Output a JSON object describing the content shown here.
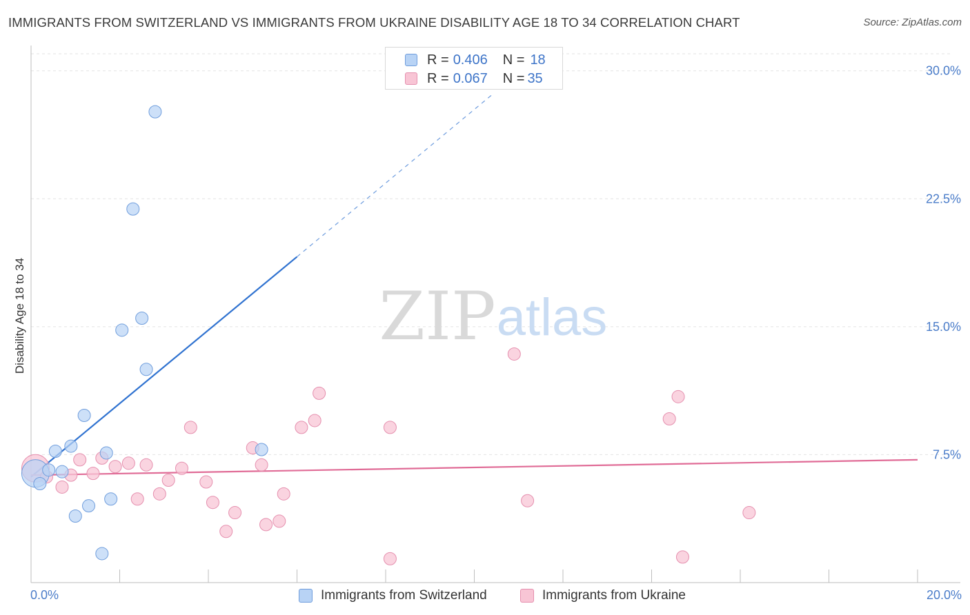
{
  "title": "IMMIGRANTS FROM SWITZERLAND VS IMMIGRANTS FROM UKRAINE DISABILITY AGE 18 TO 34 CORRELATION CHART",
  "source": "Source: ZipAtlas.com",
  "watermark": {
    "zip": "ZIP",
    "atlas": "atlas"
  },
  "colors": {
    "switzerland_fill": "#b8d3f5",
    "switzerland_stroke": "#6f9ddc",
    "switzerland_line": "#2f72d0",
    "ukraine_fill": "#f8c5d5",
    "ukraine_stroke": "#e58fae",
    "ukraine_line": "#e06b96",
    "grid": "#e3e3e3",
    "tick_text": "#4a7cc9"
  },
  "legend": {
    "rows": [
      {
        "r_label": "R = ",
        "r_value": "0.406",
        "n_label": "N = ",
        "n_value": "18"
      },
      {
        "r_label": "R = ",
        "r_value": "0.067",
        "n_label": "N = ",
        "n_value": "35"
      }
    ]
  },
  "chart_data": {
    "type": "scatter",
    "title": "IMMIGRANTS FROM SWITZERLAND VS IMMIGRANTS FROM UKRAINE DISABILITY AGE 18 TO 34 CORRELATION CHART",
    "xlabel": "",
    "ylabel": "Disability Age 18 to 34",
    "xlim": [
      0,
      20
    ],
    "ylim": [
      0,
      31.0
    ],
    "x_tick_labels": [
      {
        "value": 0,
        "label": "0.0%"
      },
      {
        "value": 20,
        "label": "20.0%"
      }
    ],
    "y_tick_labels": [
      {
        "value": 7.5,
        "label": "7.5%"
      },
      {
        "value": 15,
        "label": "15.0%"
      },
      {
        "value": 22.5,
        "label": "22.5%"
      },
      {
        "value": 30,
        "label": "30.0%"
      }
    ],
    "x_minor_ticks": [
      2,
      4,
      6,
      8,
      10,
      12,
      14,
      16,
      18
    ],
    "grid": true,
    "series": [
      {
        "name": "Immigrants from Switzerland",
        "R": 0.406,
        "N": 18,
        "trend": {
          "x0": 0.0,
          "y0": 6.2,
          "x1_solid": 6.0,
          "y1_solid": 19.1,
          "x1_dashed": 10.4,
          "y1_dashed": 28.6
        },
        "points": [
          [
            0.1,
            6.4,
            20
          ],
          [
            0.2,
            5.8,
            9
          ],
          [
            0.4,
            6.6,
            9
          ],
          [
            0.55,
            7.7,
            9
          ],
          [
            0.7,
            6.5,
            9
          ],
          [
            0.9,
            8.0,
            9
          ],
          [
            1.0,
            3.9,
            9
          ],
          [
            1.2,
            9.8,
            9
          ],
          [
            1.3,
            4.5,
            9
          ],
          [
            1.6,
            1.7,
            9
          ],
          [
            1.7,
            7.6,
            9
          ],
          [
            1.8,
            4.9,
            9
          ],
          [
            2.05,
            14.8,
            9
          ],
          [
            2.3,
            21.9,
            9
          ],
          [
            2.5,
            15.5,
            9
          ],
          [
            2.6,
            12.5,
            9
          ],
          [
            2.8,
            27.6,
            9
          ],
          [
            5.2,
            7.8,
            9
          ]
        ]
      },
      {
        "name": "Immigrants from Ukraine",
        "R": 0.067,
        "N": 35,
        "trend": {
          "x0": 0.0,
          "y0": 6.3,
          "x1": 20.0,
          "y1": 7.2
        },
        "points": [
          [
            0.1,
            6.7,
            20
          ],
          [
            0.35,
            6.2,
            9
          ],
          [
            0.7,
            5.6,
            9
          ],
          [
            0.9,
            6.3,
            9
          ],
          [
            1.1,
            7.2,
            9
          ],
          [
            1.4,
            6.4,
            9
          ],
          [
            1.6,
            7.3,
            9
          ],
          [
            1.9,
            6.8,
            9
          ],
          [
            2.2,
            7.0,
            9
          ],
          [
            2.4,
            4.9,
            9
          ],
          [
            2.6,
            6.9,
            9
          ],
          [
            2.9,
            5.2,
            9
          ],
          [
            3.1,
            6.0,
            9
          ],
          [
            3.4,
            6.7,
            9
          ],
          [
            3.6,
            9.1,
            9
          ],
          [
            3.95,
            5.9,
            9
          ],
          [
            4.1,
            4.7,
            9
          ],
          [
            4.4,
            3.0,
            9
          ],
          [
            4.6,
            4.1,
            9
          ],
          [
            5.0,
            7.9,
            9
          ],
          [
            5.2,
            6.9,
            9
          ],
          [
            5.3,
            3.4,
            9
          ],
          [
            5.6,
            3.6,
            9
          ],
          [
            5.7,
            5.2,
            9
          ],
          [
            6.1,
            9.1,
            9
          ],
          [
            6.4,
            9.5,
            9
          ],
          [
            6.5,
            11.1,
            9
          ],
          [
            8.1,
            9.1,
            9
          ],
          [
            8.1,
            1.4,
            9
          ],
          [
            10.9,
            13.4,
            9
          ],
          [
            11.2,
            4.8,
            9
          ],
          [
            14.4,
            9.6,
            9
          ],
          [
            14.6,
            10.9,
            9
          ],
          [
            14.7,
            1.5,
            9
          ],
          [
            16.2,
            4.1,
            9
          ]
        ]
      }
    ]
  }
}
